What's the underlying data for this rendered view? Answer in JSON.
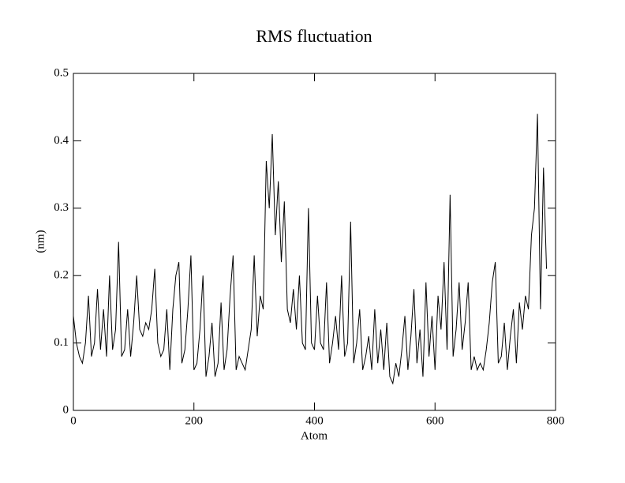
{
  "chart_data": {
    "type": "line",
    "title": "RMS fluctuation",
    "x_label": "Atom",
    "y_label": "(nm)",
    "xlim": [
      0,
      800
    ],
    "xticks": [
      0,
      200,
      400,
      600,
      800
    ],
    "ylim": [
      0,
      0.5
    ],
    "yticks": [
      0,
      0.1,
      0.2,
      0.3,
      0.4,
      0.5
    ],
    "x": [
      0,
      5,
      10,
      15,
      20,
      25,
      30,
      35,
      40,
      45,
      50,
      55,
      60,
      65,
      70,
      75,
      80,
      85,
      90,
      95,
      100,
      105,
      110,
      115,
      120,
      125,
      130,
      135,
      140,
      145,
      150,
      155,
      160,
      165,
      170,
      175,
      180,
      185,
      190,
      195,
      200,
      205,
      210,
      215,
      220,
      225,
      230,
      235,
      240,
      245,
      250,
      255,
      260,
      265,
      270,
      275,
      280,
      285,
      290,
      295,
      300,
      305,
      310,
      315,
      320,
      325,
      330,
      335,
      340,
      345,
      350,
      355,
      360,
      365,
      370,
      375,
      380,
      385,
      390,
      395,
      400,
      405,
      410,
      415,
      420,
      425,
      430,
      435,
      440,
      445,
      450,
      455,
      460,
      465,
      470,
      475,
      480,
      485,
      490,
      495,
      500,
      505,
      510,
      515,
      520,
      525,
      530,
      535,
      540,
      545,
      550,
      555,
      560,
      565,
      570,
      575,
      580,
      585,
      590,
      595,
      600,
      605,
      610,
      615,
      620,
      625,
      630,
      635,
      640,
      645,
      650,
      655,
      660,
      665,
      670,
      675,
      680,
      685,
      690,
      695,
      700,
      705,
      710,
      715,
      720,
      725,
      730,
      735,
      740,
      745,
      750,
      755,
      760,
      765,
      770,
      775,
      780,
      785
    ],
    "series": [
      {
        "color": "#000000",
        "values": [
          0.14,
          0.1,
          0.08,
          0.07,
          0.1,
          0.17,
          0.08,
          0.1,
          0.18,
          0.09,
          0.15,
          0.08,
          0.2,
          0.09,
          0.12,
          0.25,
          0.08,
          0.09,
          0.15,
          0.08,
          0.13,
          0.2,
          0.12,
          0.11,
          0.13,
          0.12,
          0.15,
          0.21,
          0.1,
          0.08,
          0.09,
          0.15,
          0.06,
          0.15,
          0.2,
          0.22,
          0.07,
          0.09,
          0.15,
          0.23,
          0.06,
          0.07,
          0.12,
          0.2,
          0.05,
          0.08,
          0.13,
          0.05,
          0.07,
          0.16,
          0.06,
          0.09,
          0.17,
          0.23,
          0.06,
          0.08,
          0.07,
          0.06,
          0.09,
          0.12,
          0.23,
          0.11,
          0.17,
          0.15,
          0.37,
          0.3,
          0.41,
          0.26,
          0.34,
          0.22,
          0.31,
          0.15,
          0.13,
          0.18,
          0.12,
          0.2,
          0.1,
          0.09,
          0.3,
          0.1,
          0.09,
          0.17,
          0.1,
          0.09,
          0.19,
          0.07,
          0.1,
          0.14,
          0.09,
          0.2,
          0.08,
          0.1,
          0.28,
          0.07,
          0.1,
          0.15,
          0.06,
          0.08,
          0.11,
          0.06,
          0.15,
          0.07,
          0.12,
          0.06,
          0.13,
          0.05,
          0.04,
          0.07,
          0.05,
          0.09,
          0.14,
          0.06,
          0.11,
          0.18,
          0.07,
          0.12,
          0.05,
          0.19,
          0.08,
          0.14,
          0.06,
          0.17,
          0.12,
          0.22,
          0.09,
          0.32,
          0.08,
          0.12,
          0.19,
          0.09,
          0.13,
          0.19,
          0.06,
          0.08,
          0.06,
          0.07,
          0.06,
          0.09,
          0.13,
          0.19,
          0.22,
          0.07,
          0.08,
          0.13,
          0.06,
          0.11,
          0.15,
          0.07,
          0.16,
          0.12,
          0.17,
          0.15,
          0.26,
          0.3,
          0.44,
          0.15,
          0.36,
          0.21
        ]
      }
    ]
  }
}
